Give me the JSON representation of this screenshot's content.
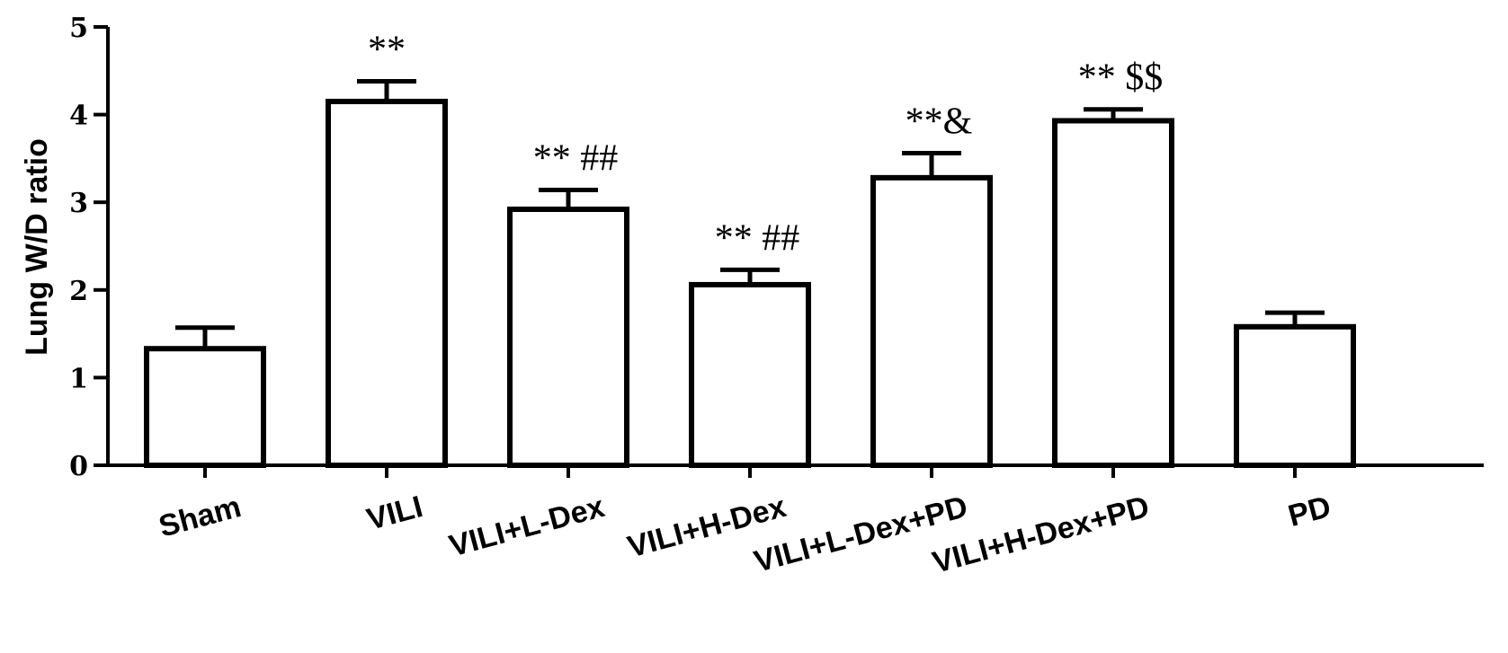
{
  "chart_data": {
    "type": "bar",
    "categories": [
      "Sham",
      "VILI",
      "VILI+L-Dex",
      "VILI+H-Dex",
      "VILI+L-Dex+PD",
      "VILI+H-Dex+PD",
      "PD"
    ],
    "values": [
      1.33,
      4.15,
      2.92,
      2.06,
      3.28,
      3.93,
      1.58
    ],
    "errors": [
      0.24,
      0.23,
      0.22,
      0.17,
      0.28,
      0.13,
      0.16
    ],
    "annotations": [
      "",
      "**",
      "** ##",
      "** ##",
      "**&",
      "** $$",
      ""
    ],
    "ylabel": "Lung W/D ratio",
    "xlabel": "",
    "ylim": [
      0,
      5
    ],
    "yticks": [
      "0",
      "1",
      "2",
      "3",
      "4",
      "5"
    ],
    "grid": false,
    "bar_fill": "#ffffff",
    "bar_stroke": "#000000"
  }
}
